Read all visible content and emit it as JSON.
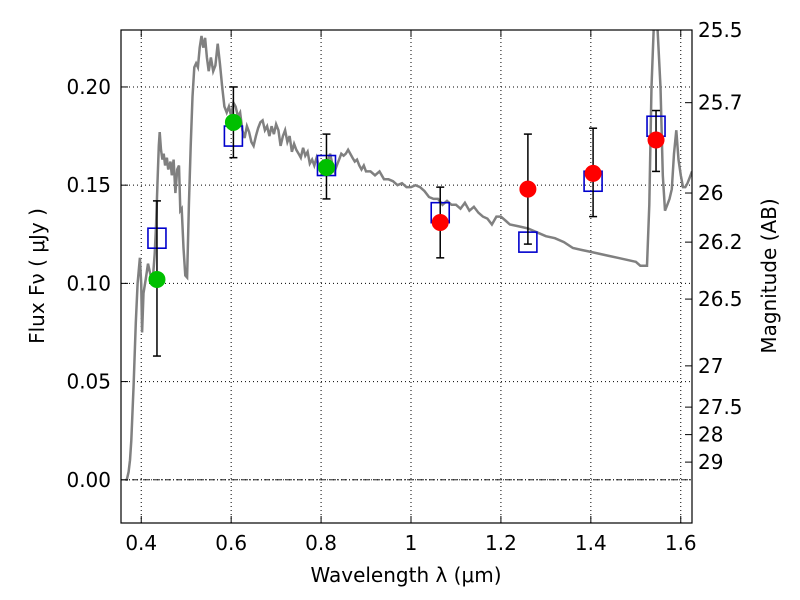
{
  "chart_data": {
    "type": "scatter",
    "xlabel": "Wavelength  λ (μm)",
    "ylabel": "Flux  Fν  ( μJy )",
    "ylabel_right": "Magnitude (AB)",
    "xlim": [
      0.355,
      1.625
    ],
    "ylim": [
      -0.022,
      0.229
    ],
    "grid": true,
    "x_ticks": [
      0.4,
      0.6,
      0.8,
      1.0,
      1.2,
      1.4,
      1.6
    ],
    "x_tick_labels": [
      "0.4",
      "0.6",
      "0.8",
      "1",
      "1.2",
      "1.4",
      "1.6"
    ],
    "y_ticks": [
      0.0,
      0.05,
      0.1,
      0.15,
      0.2
    ],
    "y_tick_labels": [
      "0.00",
      "0.05",
      "0.10",
      "0.15",
      "0.20"
    ],
    "mag_ticks": [
      {
        "label": "25.5",
        "flux": 0.229
      },
      {
        "label": "25.7",
        "flux": 0.192
      },
      {
        "label": "26",
        "flux": 0.146
      },
      {
        "label": "26.2",
        "flux": 0.121
      },
      {
        "label": "26.5",
        "flux": 0.092
      },
      {
        "label": "27",
        "flux": 0.058
      },
      {
        "label": "27.5",
        "flux": 0.037
      },
      {
        "label": "28",
        "flux": 0.023
      },
      {
        "label": "29",
        "flux": 0.009
      }
    ],
    "colors": {
      "model": "#808080",
      "detection_green": "#00c000",
      "detection_red": "#ff0000",
      "box": "#0000cc",
      "errorbar": "#000000"
    },
    "series": [
      {
        "type": "line",
        "points": [
          [
            0.365,
            0.0
          ],
          [
            0.368,
            0.0
          ],
          [
            0.372,
            0.004
          ],
          [
            0.375,
            0.01
          ],
          [
            0.378,
            0.02
          ],
          [
            0.383,
            0.048
          ],
          [
            0.388,
            0.08
          ],
          [
            0.392,
            0.1
          ],
          [
            0.395,
            0.108
          ],
          [
            0.397,
            0.113
          ],
          [
            0.4,
            0.1
          ],
          [
            0.402,
            0.075
          ],
          [
            0.405,
            0.095
          ],
          [
            0.41,
            0.102
          ],
          [
            0.415,
            0.11
          ],
          [
            0.42,
            0.105
          ],
          [
            0.425,
            0.1
          ],
          [
            0.43,
            0.115
          ],
          [
            0.433,
            0.13
          ],
          [
            0.436,
            0.15
          ],
          [
            0.439,
            0.17
          ],
          [
            0.441,
            0.177
          ],
          [
            0.444,
            0.168
          ],
          [
            0.447,
            0.163
          ],
          [
            0.45,
            0.166
          ],
          [
            0.453,
            0.16
          ],
          [
            0.457,
            0.164
          ],
          [
            0.46,
            0.158
          ],
          [
            0.465,
            0.162
          ],
          [
            0.468,
            0.155
          ],
          [
            0.472,
            0.163
          ],
          [
            0.476,
            0.146
          ],
          [
            0.48,
            0.158
          ],
          [
            0.484,
            0.16
          ],
          [
            0.487,
            0.137
          ],
          [
            0.49,
            0.138
          ],
          [
            0.494,
            0.118
          ],
          [
            0.498,
            0.104
          ],
          [
            0.502,
            0.103
          ],
          [
            0.506,
            0.14
          ],
          [
            0.51,
            0.17
          ],
          [
            0.514,
            0.195
          ],
          [
            0.518,
            0.21
          ],
          [
            0.522,
            0.212
          ],
          [
            0.526,
            0.21
          ],
          [
            0.53,
            0.22
          ],
          [
            0.534,
            0.226
          ],
          [
            0.538,
            0.22
          ],
          [
            0.542,
            0.225
          ],
          [
            0.546,
            0.215
          ],
          [
            0.55,
            0.208
          ],
          [
            0.555,
            0.215
          ],
          [
            0.56,
            0.208
          ],
          [
            0.565,
            0.211
          ],
          [
            0.57,
            0.222
          ],
          [
            0.575,
            0.212
          ],
          [
            0.58,
            0.2
          ],
          [
            0.585,
            0.19
          ],
          [
            0.59,
            0.187
          ],
          [
            0.595,
            0.19
          ],
          [
            0.6,
            0.185
          ],
          [
            0.605,
            0.192
          ],
          [
            0.61,
            0.19
          ],
          [
            0.615,
            0.185
          ],
          [
            0.62,
            0.187
          ],
          [
            0.625,
            0.178
          ],
          [
            0.63,
            0.174
          ],
          [
            0.635,
            0.18
          ],
          [
            0.64,
            0.177
          ],
          [
            0.645,
            0.172
          ],
          [
            0.65,
            0.17
          ],
          [
            0.655,
            0.175
          ],
          [
            0.66,
            0.179
          ],
          [
            0.665,
            0.182
          ],
          [
            0.67,
            0.183
          ],
          [
            0.675,
            0.178
          ],
          [
            0.68,
            0.18
          ],
          [
            0.685,
            0.175
          ],
          [
            0.69,
            0.18
          ],
          [
            0.695,
            0.176
          ],
          [
            0.7,
            0.181
          ],
          [
            0.705,
            0.178
          ],
          [
            0.71,
            0.17
          ],
          [
            0.715,
            0.175
          ],
          [
            0.72,
            0.178
          ],
          [
            0.725,
            0.172
          ],
          [
            0.73,
            0.175
          ],
          [
            0.735,
            0.167
          ],
          [
            0.74,
            0.171
          ],
          [
            0.745,
            0.168
          ],
          [
            0.75,
            0.166
          ],
          [
            0.755,
            0.164
          ],
          [
            0.76,
            0.169
          ],
          [
            0.765,
            0.165
          ],
          [
            0.77,
            0.167
          ],
          [
            0.775,
            0.161
          ],
          [
            0.78,
            0.163
          ],
          [
            0.785,
            0.16
          ],
          [
            0.79,
            0.164
          ],
          [
            0.795,
            0.16
          ],
          [
            0.8,
            0.158
          ],
          [
            0.805,
            0.163
          ],
          [
            0.81,
            0.158
          ],
          [
            0.815,
            0.162
          ],
          [
            0.82,
            0.166
          ],
          [
            0.825,
            0.161
          ],
          [
            0.83,
            0.157
          ],
          [
            0.835,
            0.16
          ],
          [
            0.84,
            0.163
          ],
          [
            0.845,
            0.166
          ],
          [
            0.85,
            0.165
          ],
          [
            0.855,
            0.166
          ],
          [
            0.86,
            0.168
          ],
          [
            0.865,
            0.166
          ],
          [
            0.87,
            0.164
          ],
          [
            0.875,
            0.162
          ],
          [
            0.88,
            0.163
          ],
          [
            0.885,
            0.16
          ],
          [
            0.89,
            0.158
          ],
          [
            0.895,
            0.16
          ],
          [
            0.9,
            0.157
          ],
          [
            0.91,
            0.157
          ],
          [
            0.92,
            0.155
          ],
          [
            0.93,
            0.157
          ],
          [
            0.94,
            0.153
          ],
          [
            0.95,
            0.153
          ],
          [
            0.96,
            0.152
          ],
          [
            0.97,
            0.15
          ],
          [
            0.98,
            0.151
          ],
          [
            0.99,
            0.149
          ],
          [
            1.0,
            0.149
          ],
          [
            1.01,
            0.15
          ],
          [
            1.02,
            0.149
          ],
          [
            1.03,
            0.147
          ],
          [
            1.04,
            0.144
          ],
          [
            1.05,
            0.143
          ],
          [
            1.06,
            0.143
          ],
          [
            1.07,
            0.14
          ],
          [
            1.08,
            0.142
          ],
          [
            1.09,
            0.14
          ],
          [
            1.1,
            0.14
          ],
          [
            1.11,
            0.138
          ],
          [
            1.12,
            0.141
          ],
          [
            1.13,
            0.137
          ],
          [
            1.14,
            0.139
          ],
          [
            1.15,
            0.136
          ],
          [
            1.16,
            0.134
          ],
          [
            1.17,
            0.133
          ],
          [
            1.18,
            0.13
          ],
          [
            1.19,
            0.134
          ],
          [
            1.2,
            0.134
          ],
          [
            1.21,
            0.132
          ],
          [
            1.22,
            0.13
          ],
          [
            1.24,
            0.129
          ],
          [
            1.26,
            0.128
          ],
          [
            1.28,
            0.126
          ],
          [
            1.3,
            0.124
          ],
          [
            1.32,
            0.123
          ],
          [
            1.34,
            0.121
          ],
          [
            1.36,
            0.118
          ],
          [
            1.38,
            0.117
          ],
          [
            1.4,
            0.116
          ],
          [
            1.42,
            0.115
          ],
          [
            1.44,
            0.114
          ],
          [
            1.46,
            0.113
          ],
          [
            1.48,
            0.112
          ],
          [
            1.5,
            0.111
          ],
          [
            1.51,
            0.109
          ],
          [
            1.52,
            0.109
          ],
          [
            1.525,
            0.109
          ],
          [
            1.53,
            0.14
          ],
          [
            1.535,
            0.2
          ],
          [
            1.54,
            0.231
          ],
          [
            1.548,
            0.231
          ],
          [
            1.555,
            0.2
          ],
          [
            1.56,
            0.155
          ],
          [
            1.565,
            0.137
          ],
          [
            1.57,
            0.14
          ],
          [
            1.575,
            0.143
          ],
          [
            1.58,
            0.148
          ],
          [
            1.585,
            0.166
          ],
          [
            1.59,
            0.178
          ],
          [
            1.595,
            0.163
          ],
          [
            1.6,
            0.155
          ],
          [
            1.605,
            0.149
          ],
          [
            1.61,
            0.149
          ],
          [
            1.615,
            0.151
          ],
          [
            1.62,
            0.154
          ],
          [
            1.625,
            0.157
          ]
        ]
      },
      {
        "type": "scatter",
        "marker": "circle",
        "color": "#00c000",
        "points": [
          {
            "x": 0.435,
            "y": 0.102,
            "err_low": 0.063,
            "err_high": 0.142
          },
          {
            "x": 0.605,
            "y": 0.182,
            "err_low": 0.164,
            "err_high": 0.2
          },
          {
            "x": 0.812,
            "y": 0.159,
            "err_low": 0.143,
            "err_high": 0.176
          }
        ]
      },
      {
        "type": "scatter",
        "marker": "circle",
        "color": "#ff0000",
        "points": [
          {
            "x": 1.065,
            "y": 0.131,
            "err_low": 0.113,
            "err_high": 0.149
          },
          {
            "x": 1.26,
            "y": 0.148,
            "err_low": 0.12,
            "err_high": 0.176
          },
          {
            "x": 1.405,
            "y": 0.156,
            "err_low": 0.134,
            "err_high": 0.179
          },
          {
            "x": 1.545,
            "y": 0.173,
            "err_low": 0.157,
            "err_high": 0.188
          }
        ]
      },
      {
        "type": "scatter",
        "marker": "square",
        "color": "#0000cc",
        "points": [
          {
            "x": 0.435,
            "y": 0.123
          },
          {
            "x": 0.605,
            "y": 0.175
          },
          {
            "x": 0.812,
            "y": 0.16
          },
          {
            "x": 1.065,
            "y": 0.136
          },
          {
            "x": 1.26,
            "y": 0.121
          },
          {
            "x": 1.405,
            "y": 0.152
          },
          {
            "x": 1.545,
            "y": 0.18
          }
        ]
      }
    ]
  }
}
